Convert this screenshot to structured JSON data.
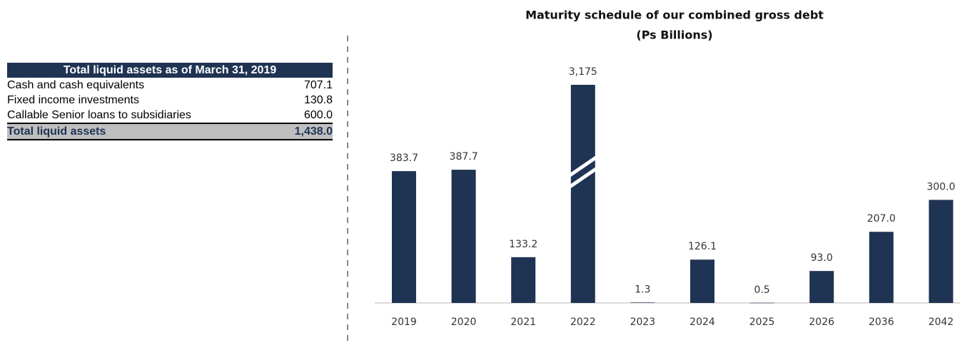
{
  "table": {
    "title": "Total liquid assets as of March 31, 2019",
    "rows": [
      [
        "Cash and cash equivalents",
        "707.1"
      ],
      [
        "Fixed income investments",
        "130.8"
      ],
      [
        "Callable Senior loans to subsidiaries",
        "600.0"
      ]
    ],
    "total": [
      "Total liquid assets",
      "1,438.0"
    ]
  },
  "chart_data": {
    "type": "bar",
    "title": "Maturity schedule of our combined gross debt",
    "subtitle": "(Ps Billions)",
    "categories": [
      "2019",
      "2020",
      "2021",
      "2022",
      "2023",
      "2024",
      "2025",
      "2026",
      "2036",
      "2042"
    ],
    "values": [
      383.7,
      387.7,
      133.2,
      3175,
      1.3,
      126.1,
      0.5,
      93.0,
      207.0,
      300.0
    ],
    "value_labels": [
      "383.7",
      "387.7",
      "133.2",
      "3,175",
      "1.3",
      "126.1",
      "0.5",
      "93.0",
      "207.0",
      "300.0"
    ],
    "color": "#1f3353"
  }
}
